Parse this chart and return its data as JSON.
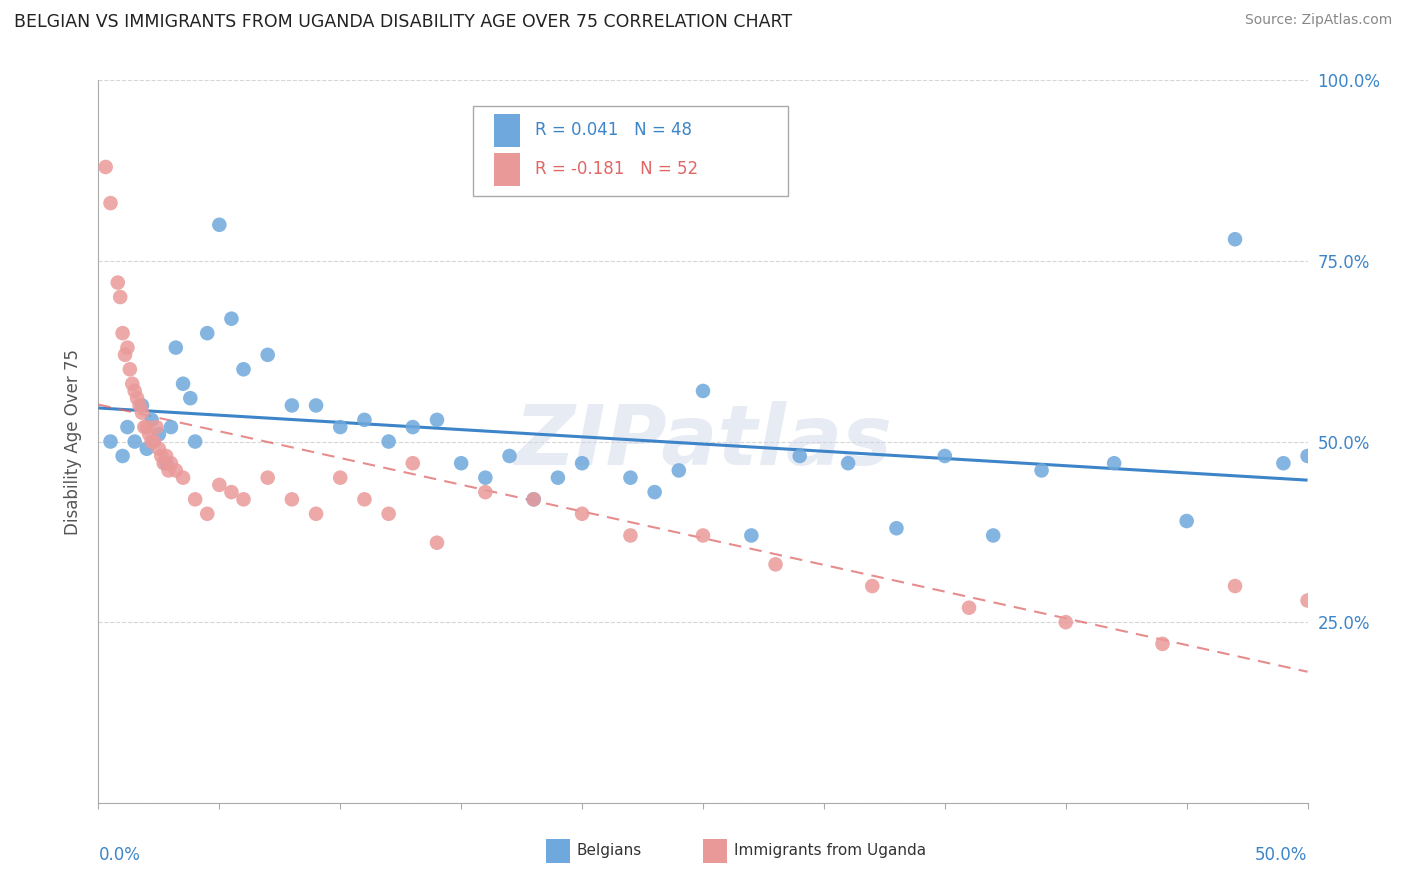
{
  "title": "BELGIAN VS IMMIGRANTS FROM UGANDA DISABILITY AGE OVER 75 CORRELATION CHART",
  "source": "Source: ZipAtlas.com",
  "ylabel": "Disability Age Over 75",
  "blue_color": "#6fa8dc",
  "pink_color": "#ea9999",
  "blue_line_color": "#3d85c8",
  "pink_line_color": "#e06666",
  "watermark_text": "ZIPatlas",
  "belgian_x": [
    0.5,
    1.0,
    1.2,
    1.5,
    1.8,
    2.0,
    2.2,
    2.5,
    2.8,
    3.0,
    3.2,
    3.5,
    3.8,
    4.0,
    4.5,
    5.0,
    5.5,
    6.0,
    7.0,
    8.0,
    9.0,
    10.0,
    11.0,
    12.0,
    13.0,
    14.0,
    15.0,
    16.0,
    17.0,
    18.0,
    19.0,
    20.0,
    22.0,
    23.0,
    24.0,
    25.0,
    27.0,
    29.0,
    31.0,
    33.0,
    35.0,
    37.0,
    39.0,
    42.0,
    45.0,
    47.0,
    49.0,
    50.0
  ],
  "belgian_y": [
    50.0,
    48.0,
    52.0,
    50.0,
    55.0,
    49.0,
    53.0,
    51.0,
    47.0,
    52.0,
    63.0,
    58.0,
    56.0,
    50.0,
    65.0,
    80.0,
    67.0,
    60.0,
    62.0,
    55.0,
    55.0,
    52.0,
    53.0,
    50.0,
    52.0,
    53.0,
    47.0,
    45.0,
    48.0,
    42.0,
    45.0,
    47.0,
    45.0,
    43.0,
    46.0,
    57.0,
    37.0,
    48.0,
    47.0,
    38.0,
    48.0,
    37.0,
    46.0,
    47.0,
    39.0,
    78.0,
    47.0,
    48.0
  ],
  "uganda_x": [
    0.3,
    0.5,
    0.8,
    0.9,
    1.0,
    1.1,
    1.2,
    1.3,
    1.4,
    1.5,
    1.6,
    1.7,
    1.8,
    1.9,
    2.0,
    2.1,
    2.2,
    2.3,
    2.4,
    2.5,
    2.6,
    2.7,
    2.8,
    2.9,
    3.0,
    3.2,
    3.5,
    4.0,
    4.5,
    5.0,
    5.5,
    6.0,
    7.0,
    8.0,
    9.0,
    10.0,
    11.0,
    12.0,
    13.0,
    14.0,
    16.0,
    18.0,
    20.0,
    22.0,
    25.0,
    28.0,
    32.0,
    36.0,
    40.0,
    44.0,
    47.0,
    50.0
  ],
  "uganda_y": [
    88.0,
    83.0,
    72.0,
    70.0,
    65.0,
    62.0,
    63.0,
    60.0,
    58.0,
    57.0,
    56.0,
    55.0,
    54.0,
    52.0,
    52.0,
    51.0,
    50.0,
    50.0,
    52.0,
    49.0,
    48.0,
    47.0,
    48.0,
    46.0,
    47.0,
    46.0,
    45.0,
    42.0,
    40.0,
    44.0,
    43.0,
    42.0,
    45.0,
    42.0,
    40.0,
    45.0,
    42.0,
    40.0,
    47.0,
    36.0,
    43.0,
    42.0,
    40.0,
    37.0,
    37.0,
    33.0,
    30.0,
    27.0,
    25.0,
    22.0,
    30.0,
    28.0
  ],
  "xlim": [
    0,
    50
  ],
  "ylim": [
    0,
    100
  ],
  "figsize": [
    14.06,
    8.92
  ],
  "dpi": 100
}
